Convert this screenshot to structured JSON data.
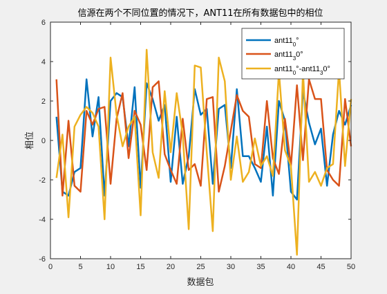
{
  "chart_data": {
    "type": "line",
    "title": "信源在两个不同位置的情况下，ANT11在所有数据包中的相位",
    "xlabel": "数据包",
    "ylabel": "相位",
    "xlim": [
      0,
      50
    ],
    "ylim": [
      -6,
      6
    ],
    "xticks": [
      0,
      5,
      10,
      15,
      20,
      25,
      30,
      35,
      40,
      45,
      50
    ],
    "yticks": [
      -6,
      -4,
      -2,
      0,
      2,
      4,
      6
    ],
    "grid": false,
    "legend_position": "top-right",
    "series": [
      {
        "name": "ant11_0°",
        "name_base": "ant11",
        "name_sub": "0",
        "name_suffix": "°",
        "color": "#0072bd",
        "x": [
          1,
          2,
          3,
          4,
          5,
          6,
          7,
          8,
          9,
          10,
          11,
          12,
          13,
          14,
          15,
          16,
          17,
          18,
          19,
          20,
          21,
          22,
          23,
          24,
          25,
          26,
          27,
          28,
          29,
          30,
          31,
          32,
          33,
          34,
          35,
          36,
          37,
          38,
          39,
          40,
          41,
          42,
          43,
          44,
          45,
          46,
          47,
          48,
          49,
          50
        ],
        "values": [
          1.2,
          -2.6,
          -2.8,
          -1.6,
          -1.4,
          3.1,
          0.2,
          2.2,
          -2.8,
          2.0,
          2.4,
          2.2,
          -0.3,
          2.7,
          -2.4,
          2.9,
          2.1,
          1.0,
          1.8,
          -2.1,
          1.2,
          -2.2,
          -0.8,
          2.6,
          1.3,
          1.6,
          -2.2,
          1.6,
          1.8,
          -1.4,
          2.6,
          -0.8,
          -0.8,
          -1.4,
          -2.1,
          0.7,
          -2.8,
          2.0,
          1.0,
          -2.6,
          -3.0,
          2.5,
          0.9,
          -0.2,
          0.6,
          -2.3,
          0.3,
          1.5,
          0.8,
          1.8
        ]
      },
      {
        "name": "ant11_3°",
        "name_base": "ant11",
        "name_sub": "3",
        "name_suffix": "0°",
        "color": "#d95319",
        "x": [
          1,
          2,
          3,
          4,
          5,
          6,
          7,
          8,
          9,
          10,
          11,
          12,
          13,
          14,
          15,
          16,
          17,
          18,
          19,
          20,
          21,
          22,
          23,
          24,
          25,
          26,
          27,
          28,
          29,
          30,
          31,
          32,
          33,
          34,
          35,
          36,
          37,
          38,
          39,
          40,
          41,
          42,
          43,
          44,
          45,
          46,
          47,
          48,
          49,
          50
        ],
        "values": [
          3.1,
          -2.8,
          1.0,
          -2.3,
          -2.6,
          1.5,
          0.8,
          1.6,
          1.7,
          -2.2,
          1.1,
          2.4,
          -0.9,
          1.5,
          0.8,
          -1.5,
          2.7,
          3.0,
          -0.7,
          -1.5,
          -2.2,
          1.1,
          -1.5,
          -1.2,
          -2.3,
          2.1,
          2.2,
          -2.6,
          -1.3,
          0.5,
          2.3,
          1.5,
          1.2,
          -1.2,
          -1.4,
          2.0,
          -0.9,
          -1.7,
          1.1,
          -1.3,
          2.8,
          -1.0,
          3.1,
          2.1,
          2.1,
          -1.5,
          -2.0,
          -2.3,
          2.1,
          -0.3
        ]
      },
      {
        "name": "ant11_0°-ant11_3°",
        "name_base": "ant11",
        "name_sub": "0",
        "name_suffix": "°-ant11",
        "name_sub2": "3",
        "name_suffix2": "0°",
        "color": "#edb120",
        "x": [
          1,
          2,
          3,
          4,
          5,
          6,
          7,
          8,
          9,
          10,
          11,
          12,
          13,
          14,
          15,
          16,
          17,
          18,
          19,
          20,
          21,
          22,
          23,
          24,
          25,
          26,
          27,
          28,
          29,
          30,
          31,
          32,
          33,
          34,
          35,
          36,
          37,
          38,
          39,
          40,
          41,
          42,
          43,
          44,
          45,
          46,
          47,
          48,
          49,
          50
        ],
        "values": [
          -1.9,
          0.3,
          -3.9,
          0.7,
          1.3,
          1.7,
          1.4,
          0.7,
          -4.0,
          4.2,
          1.3,
          -0.3,
          0.7,
          1.2,
          -3.8,
          4.6,
          -0.6,
          -1.9,
          2.5,
          -0.6,
          2.4,
          0.3,
          -4.5,
          3.8,
          3.7,
          -0.6,
          -4.6,
          4.2,
          3.0,
          -2.0,
          0.2,
          -2.1,
          -1.6,
          0.1,
          -1.3,
          -0.8,
          -1.8,
          3.5,
          -0.5,
          -1.3,
          -5.8,
          3.5,
          -2.1,
          -1.6,
          -2.3,
          -1.4,
          -1.2,
          3.6,
          -1.3,
          2.1
        ]
      }
    ]
  }
}
